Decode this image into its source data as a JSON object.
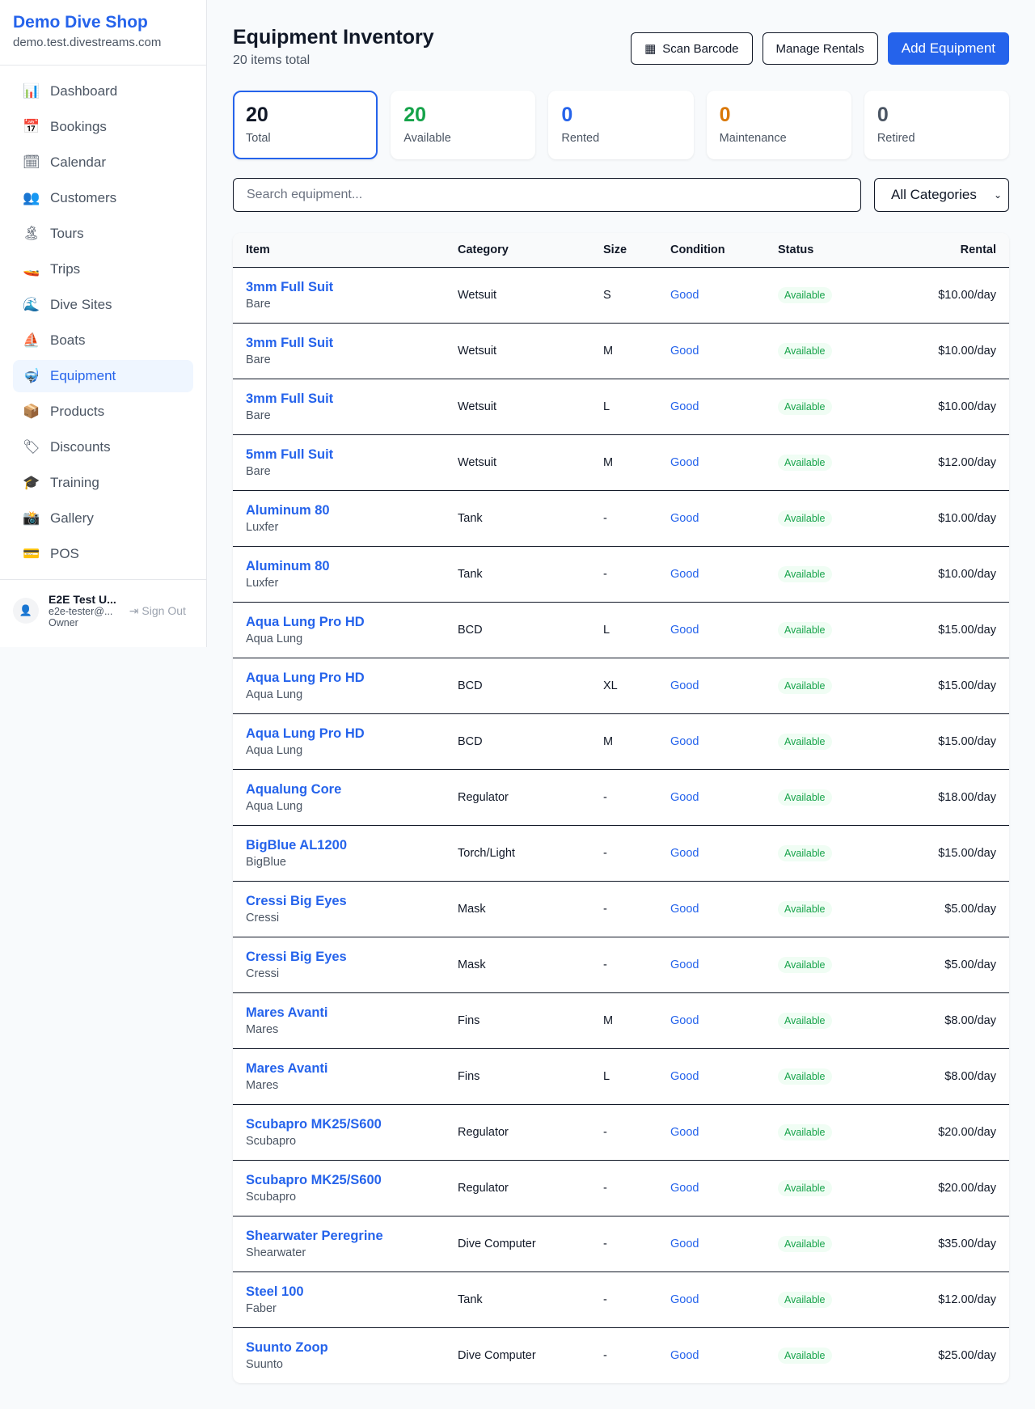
{
  "sidebar": {
    "shop_name": "Demo Dive Shop",
    "domain": "demo.test.divestreams.com",
    "items": [
      {
        "label": "Dashboard",
        "icon": "📊"
      },
      {
        "label": "Bookings",
        "icon": "📅"
      },
      {
        "label": "Calendar",
        "icon": "🗓"
      },
      {
        "label": "Customers",
        "icon": "👥"
      },
      {
        "label": "Tours",
        "icon": "🏝"
      },
      {
        "label": "Trips",
        "icon": "🚤"
      },
      {
        "label": "Dive Sites",
        "icon": "🌊"
      },
      {
        "label": "Boats",
        "icon": "⛵"
      },
      {
        "label": "Equipment",
        "icon": "🤿"
      },
      {
        "label": "Products",
        "icon": "📦"
      },
      {
        "label": "Discounts",
        "icon": "🏷"
      },
      {
        "label": "Training",
        "icon": "🎓"
      },
      {
        "label": "Gallery",
        "icon": "📸"
      },
      {
        "label": "POS",
        "icon": "💳"
      }
    ],
    "active": "Equipment",
    "user": {
      "name": "E2E Test U...",
      "email": "e2e-tester@...",
      "role": "Owner",
      "sign_out": "Sign Out"
    }
  },
  "header": {
    "title": "Equipment Inventory",
    "subtitle": "20 items total",
    "scan": "Scan Barcode",
    "manage": "Manage Rentals",
    "add": "Add Equipment"
  },
  "stats": [
    {
      "value": "20",
      "label": "Total",
      "color": "#111827"
    },
    {
      "value": "20",
      "label": "Available",
      "color": "#16a34a"
    },
    {
      "value": "0",
      "label": "Rented",
      "color": "#2563eb"
    },
    {
      "value": "0",
      "label": "Maintenance",
      "color": "#d97706"
    },
    {
      "value": "0",
      "label": "Retired",
      "color": "#4b5563"
    }
  ],
  "filters": {
    "search_placeholder": "Search equipment...",
    "category": "All Categories"
  },
  "table": {
    "headers": [
      "Item",
      "Category",
      "Size",
      "Condition",
      "Status",
      "Rental"
    ],
    "rows": [
      [
        "3mm Full Suit",
        "Bare",
        "Wetsuit",
        "S",
        "Good",
        "Available",
        "$10.00/day"
      ],
      [
        "3mm Full Suit",
        "Bare",
        "Wetsuit",
        "M",
        "Good",
        "Available",
        "$10.00/day"
      ],
      [
        "3mm Full Suit",
        "Bare",
        "Wetsuit",
        "L",
        "Good",
        "Available",
        "$10.00/day"
      ],
      [
        "5mm Full Suit",
        "Bare",
        "Wetsuit",
        "M",
        "Good",
        "Available",
        "$12.00/day"
      ],
      [
        "Aluminum 80",
        "Luxfer",
        "Tank",
        "-",
        "Good",
        "Available",
        "$10.00/day"
      ],
      [
        "Aluminum 80",
        "Luxfer",
        "Tank",
        "-",
        "Good",
        "Available",
        "$10.00/day"
      ],
      [
        "Aqua Lung Pro HD",
        "Aqua Lung",
        "BCD",
        "L",
        "Good",
        "Available",
        "$15.00/day"
      ],
      [
        "Aqua Lung Pro HD",
        "Aqua Lung",
        "BCD",
        "XL",
        "Good",
        "Available",
        "$15.00/day"
      ],
      [
        "Aqua Lung Pro HD",
        "Aqua Lung",
        "BCD",
        "M",
        "Good",
        "Available",
        "$15.00/day"
      ],
      [
        "Aqualung Core",
        "Aqua Lung",
        "Regulator",
        "-",
        "Good",
        "Available",
        "$18.00/day"
      ],
      [
        "BigBlue AL1200",
        "BigBlue",
        "Torch/Light",
        "-",
        "Good",
        "Available",
        "$15.00/day"
      ],
      [
        "Cressi Big Eyes",
        "Cressi",
        "Mask",
        "-",
        "Good",
        "Available",
        "$5.00/day"
      ],
      [
        "Cressi Big Eyes",
        "Cressi",
        "Mask",
        "-",
        "Good",
        "Available",
        "$5.00/day"
      ],
      [
        "Mares Avanti",
        "Mares",
        "Fins",
        "M",
        "Good",
        "Available",
        "$8.00/day"
      ],
      [
        "Mares Avanti",
        "Mares",
        "Fins",
        "L",
        "Good",
        "Available",
        "$8.00/day"
      ],
      [
        "Scubapro MK25/S600",
        "Scubapro",
        "Regulator",
        "-",
        "Good",
        "Available",
        "$20.00/day"
      ],
      [
        "Scubapro MK25/S600",
        "Scubapro",
        "Regulator",
        "-",
        "Good",
        "Available",
        "$20.00/day"
      ],
      [
        "Shearwater Peregrine",
        "Shearwater",
        "Dive Computer",
        "-",
        "Good",
        "Available",
        "$35.00/day"
      ],
      [
        "Steel 100",
        "Faber",
        "Tank",
        "-",
        "Good",
        "Available",
        "$12.00/day"
      ],
      [
        "Suunto Zoop",
        "Suunto",
        "Dive Computer",
        "-",
        "Good",
        "Available",
        "$25.00/day"
      ]
    ]
  }
}
